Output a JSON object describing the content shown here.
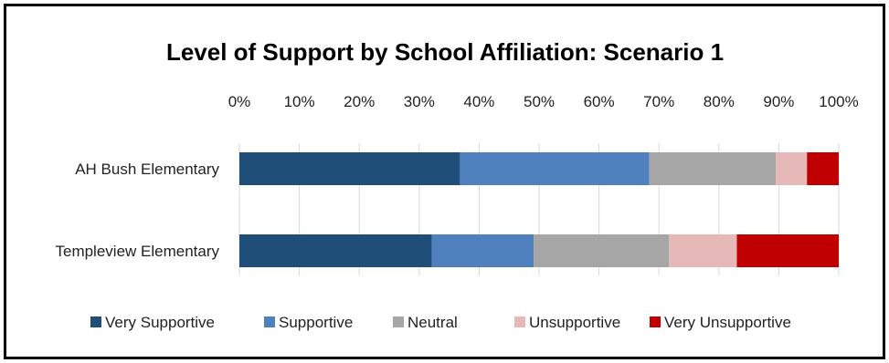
{
  "chart_data": {
    "type": "bar",
    "orientation": "horizontal",
    "stacked": "percent",
    "title": "Level of Support by School Affiliation: Scenario 1",
    "xlabel": "",
    "ylabel": "",
    "xlim": [
      0,
      100
    ],
    "x_ticks": [
      "0%",
      "10%",
      "20%",
      "30%",
      "40%",
      "50%",
      "60%",
      "70%",
      "80%",
      "90%",
      "100%"
    ],
    "grid": "vertical",
    "legend_position": "bottom",
    "categories": [
      "AH Bush Elementary",
      "Templeview Elementary"
    ],
    "series": [
      {
        "name": "Very Supportive",
        "color": "#1f4e79",
        "values": [
          36.8,
          32.1
        ]
      },
      {
        "name": "Supportive",
        "color": "#4e81bd",
        "values": [
          31.6,
          17.0
        ]
      },
      {
        "name": "Neutral",
        "color": "#a6a6a6",
        "values": [
          21.1,
          22.6
        ]
      },
      {
        "name": "Unsupportive",
        "color": "#e6b9b8",
        "values": [
          5.2,
          11.3
        ]
      },
      {
        "name": "Very Unsupportive",
        "color": "#c00000",
        "values": [
          5.3,
          17.0
        ]
      }
    ]
  }
}
